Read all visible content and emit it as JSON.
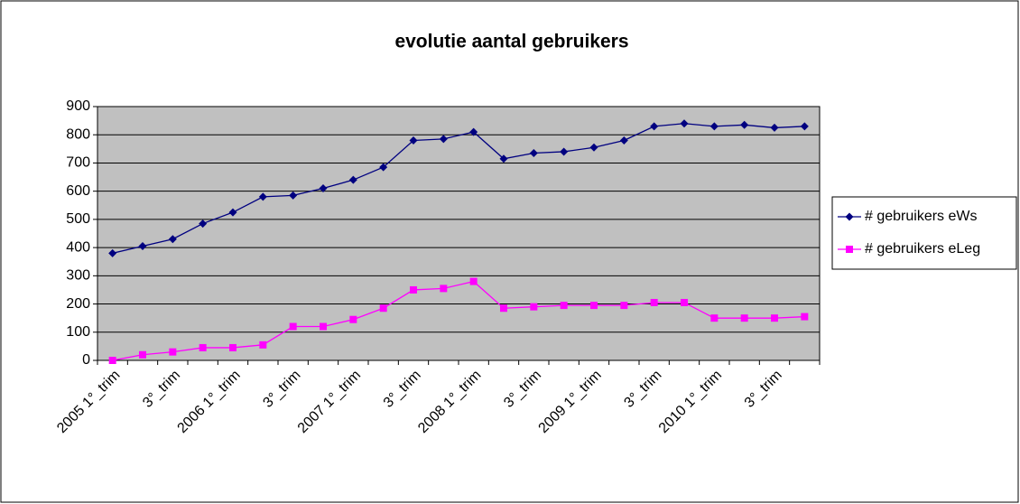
{
  "chart_data": {
    "type": "line",
    "title": "evolutie aantal gebruikers",
    "categories": [
      "2005 1°_trim",
      null,
      "3°_trim",
      null,
      "2006 1°_trim",
      null,
      "3°_trim",
      null,
      "2007 1°_trim",
      null,
      "3°_trim",
      null,
      "2008 1°_trim",
      null,
      "3°_trim",
      null,
      "2009 1°_trim",
      null,
      "3°_trim",
      null,
      "2010 1°_trim",
      null,
      "3°_trim",
      null
    ],
    "series": [
      {
        "name": "# gebruikers eWs",
        "color": "#000080",
        "marker": "diamond",
        "values": [
          380,
          405,
          430,
          485,
          525,
          580,
          585,
          610,
          640,
          685,
          780,
          785,
          810,
          715,
          735,
          740,
          755,
          780,
          830,
          840,
          830,
          835,
          825,
          830
        ]
      },
      {
        "name": "# gebruikers eLeg",
        "color": "#ff00ff",
        "marker": "square",
        "values": [
          0,
          20,
          30,
          45,
          45,
          55,
          120,
          120,
          145,
          185,
          250,
          255,
          280,
          185,
          190,
          195,
          195,
          195,
          205,
          205,
          150,
          150,
          150,
          155
        ]
      }
    ],
    "ylim": [
      0,
      900
    ],
    "yticks": [
      0,
      100,
      200,
      300,
      400,
      500,
      600,
      700,
      800,
      900
    ],
    "grid": true,
    "legend": "right",
    "plot_background": "#c0c0c0"
  }
}
